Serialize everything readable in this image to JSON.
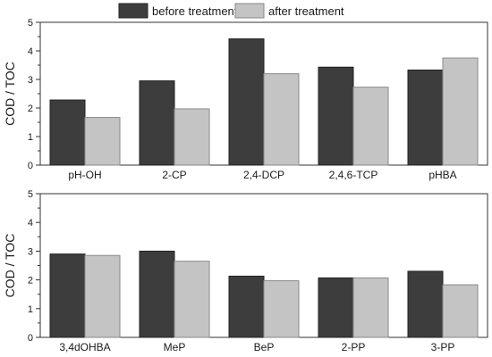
{
  "legend": {
    "before_label": "before treatment",
    "after_label": "after treatment",
    "placement": "top-center"
  },
  "colors": {
    "before": "#3d3d3d",
    "after": "#c4c4c4",
    "axis": "#333333"
  },
  "chart_data": [
    {
      "type": "bar",
      "ylabel": "COD / TOC",
      "ylim": [
        0,
        5
      ],
      "yticks": [
        "0",
        "1",
        "2",
        "3",
        "4",
        "5"
      ],
      "categories": [
        "pH-OH",
        "2-CP",
        "2,4-DCP",
        "2,4,6-TCP",
        "pHBA"
      ],
      "series": [
        {
          "name": "before treatment",
          "values": [
            2.28,
            2.95,
            4.42,
            3.43,
            3.33
          ]
        },
        {
          "name": "after treatment",
          "values": [
            1.67,
            1.97,
            3.2,
            2.73,
            3.75
          ]
        }
      ],
      "grid": false
    },
    {
      "type": "bar",
      "ylabel": "COD / TOC",
      "ylim": [
        0,
        5
      ],
      "yticks": [
        "0",
        "1",
        "2",
        "3",
        "4",
        "5"
      ],
      "categories": [
        "3,4dOHBA",
        "MeP",
        "BeP",
        "2-PP",
        "3-PP"
      ],
      "series": [
        {
          "name": "before treatment",
          "values": [
            2.9,
            3.0,
            2.13,
            2.07,
            2.3
          ]
        },
        {
          "name": "after treatment",
          "values": [
            2.85,
            2.65,
            1.97,
            2.07,
            1.83
          ]
        }
      ],
      "grid": false
    }
  ]
}
